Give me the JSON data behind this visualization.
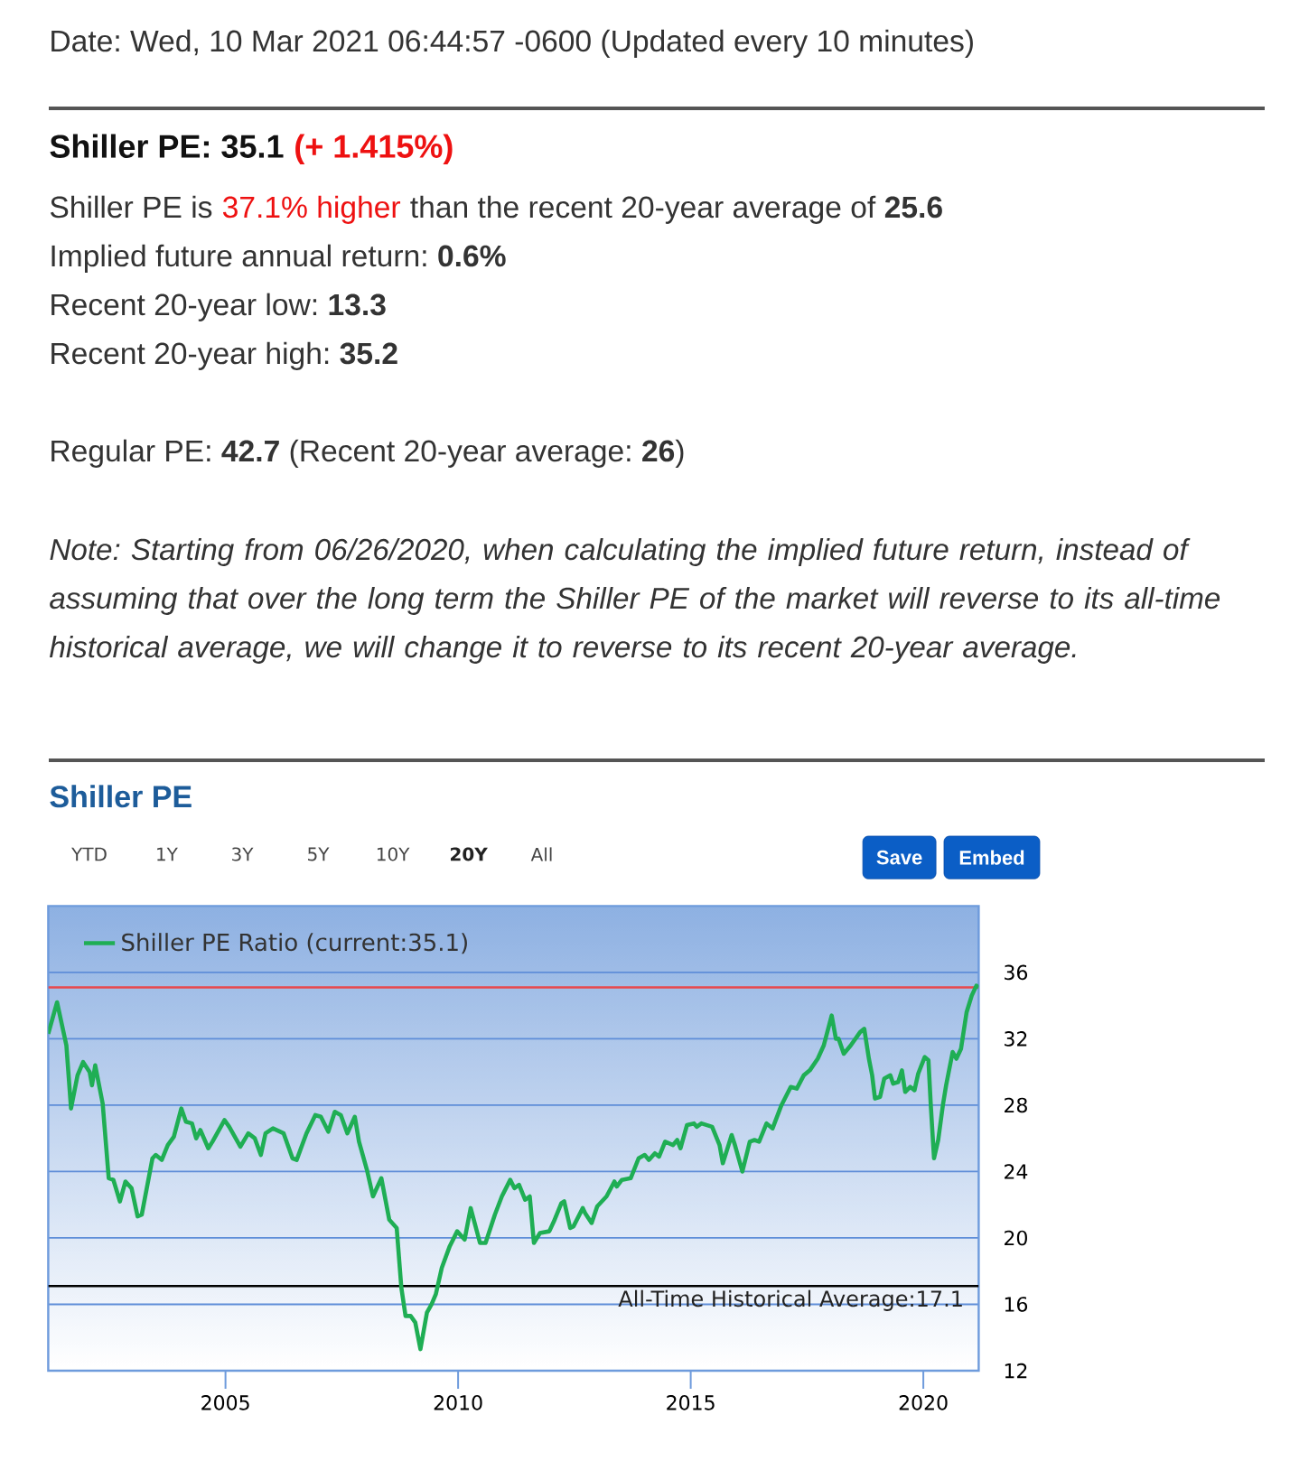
{
  "chart_data": {
    "type": "line",
    "title": "Shiller PE",
    "annotations": [
      "Date: Wed, 10 Mar 2021 06:44:57 -0600 (Updated every 10 minutes)",
      "Shiller PE: 35.1",
      "(+ 1.415%)",
      "Shiller PE is",
      "37.1% higher",
      "than the recent 20-year average of **25.6**",
      "Implied future annual return: **0.6%**",
      "Recent 20-year low: **13.3**",
      "Recent 20-year high: **35.2**",
      "Regular PE: **42.7** (Recent 20-year average: **26**)",
      "Note: Starting from 06/26/2020, when calculating the implied future return, instead of assuming that over the long term the Shiller PE of the market will reverse to its all-time historical average, we will change it to reverse to its recent 20-year average.",
      "YTD",
      "1Y",
      "3Y",
      "5Y",
      "10Y",
      "20Y",
      "All",
      "Save",
      "Embed"
    ],
    "x": [
      2001.19,
      2001.38,
      2001.58,
      2001.68,
      2001.82,
      2001.94,
      2002.08,
      2002.13,
      2002.2,
      2002.36,
      2002.49,
      2002.59,
      2002.73,
      2002.85,
      2002.98,
      2003.11,
      2003.2,
      2003.43,
      2003.5,
      2003.63,
      2003.76,
      2003.89,
      2004.05,
      2004.15,
      2004.28,
      2004.37,
      2004.46,
      2004.63,
      2004.72,
      2004.98,
      2005.08,
      2005.32,
      2005.49,
      2005.63,
      2005.76,
      2005.86,
      2006.02,
      2006.25,
      2006.44,
      2006.53,
      2006.74,
      2006.93,
      2007.05,
      2007.21,
      2007.35,
      2007.48,
      2007.62,
      2007.78,
      2007.87,
      2008.04,
      2008.17,
      2008.35,
      2008.52,
      2008.68,
      2008.78,
      2008.87,
      2008.98,
      2009.08,
      2009.19,
      2009.33,
      2009.43,
      2009.52,
      2009.65,
      2009.82,
      2009.98,
      2010.14,
      2010.27,
      2010.47,
      2010.59,
      2010.79,
      2010.94,
      2011.12,
      2011.21,
      2011.31,
      2011.44,
      2011.54,
      2011.63,
      2011.76,
      2011.96,
      2012.06,
      2012.22,
      2012.28,
      2012.41,
      2012.48,
      2012.68,
      2012.73,
      2012.87,
      2012.99,
      2013.19,
      2013.36,
      2013.41,
      2013.52,
      2013.71,
      2013.88,
      2014.01,
      2014.1,
      2014.23,
      2014.32,
      2014.45,
      2014.62,
      2014.71,
      2014.78,
      2014.92,
      2015.07,
      2015.13,
      2015.23,
      2015.46,
      2015.62,
      2015.69,
      2015.88,
      2015.95,
      2016.11,
      2016.27,
      2016.37,
      2016.47,
      2016.63,
      2016.76,
      2016.95,
      2017.15,
      2017.28,
      2017.43,
      2017.56,
      2017.73,
      2017.86,
      2018.03,
      2018.12,
      2018.18,
      2018.29,
      2018.44,
      2018.64,
      2018.73,
      2018.83,
      2018.9,
      2018.96,
      2019.07,
      2019.16,
      2019.29,
      2019.35,
      2019.46,
      2019.54,
      2019.61,
      2019.72,
      2019.81,
      2019.89,
      2020.03,
      2020.11,
      2020.16,
      2020.23,
      2020.32,
      2020.42,
      2020.49,
      2020.63,
      2020.71,
      2020.81,
      2020.93,
      2021.04,
      2021.14,
      2021.19
    ],
    "series": [
      {
        "name": "Shiller PE Ratio (current:35.1)",
        "color": "#1fae54",
        "values": [
          32.3,
          34.2,
          31.6,
          27.8,
          29.8,
          30.6,
          30.0,
          29.2,
          30.4,
          28.1,
          23.6,
          23.5,
          22.2,
          23.4,
          23.0,
          21.3,
          21.4,
          24.8,
          25.0,
          24.7,
          25.6,
          26.1,
          27.8,
          27.0,
          26.9,
          26.0,
          26.5,
          25.4,
          25.8,
          27.1,
          26.7,
          25.5,
          26.3,
          26.0,
          25.0,
          26.3,
          26.6,
          26.3,
          24.8,
          24.7,
          26.3,
          27.4,
          27.3,
          26.4,
          27.6,
          27.4,
          26.3,
          27.3,
          25.8,
          24.1,
          22.5,
          23.6,
          21.1,
          20.6,
          17.0,
          15.3,
          15.3,
          14.9,
          13.3,
          15.5,
          16.0,
          16.6,
          18.2,
          19.5,
          20.4,
          19.9,
          21.8,
          19.7,
          19.7,
          21.4,
          22.5,
          23.5,
          23.0,
          23.2,
          22.3,
          22.5,
          19.7,
          20.3,
          20.4,
          21.0,
          22.1,
          22.2,
          20.6,
          20.7,
          21.8,
          21.5,
          20.9,
          21.9,
          22.5,
          23.4,
          23.1,
          23.5,
          23.6,
          24.8,
          25.0,
          24.7,
          25.1,
          24.9,
          25.8,
          25.6,
          25.9,
          25.4,
          26.8,
          26.9,
          26.7,
          26.9,
          26.7,
          25.6,
          24.5,
          26.2,
          25.6,
          24.0,
          25.8,
          25.9,
          25.8,
          26.9,
          26.6,
          28.0,
          29.1,
          29.0,
          29.8,
          30.1,
          30.8,
          31.6,
          33.4,
          32.0,
          32.0,
          31.1,
          31.6,
          32.4,
          32.6,
          30.8,
          29.8,
          28.4,
          28.5,
          29.6,
          29.8,
          29.3,
          29.4,
          30.1,
          28.8,
          29.1,
          28.9,
          29.9,
          30.9,
          30.7,
          28.0,
          24.8,
          25.9,
          28.0,
          29.2,
          31.2,
          30.8,
          31.4,
          33.6,
          34.6,
          35.2,
          35.1
        ]
      }
    ],
    "xlim": [
      2001.19,
      2021.19
    ],
    "xticks": [
      2005,
      2010,
      2015,
      2020
    ],
    "ylim": [
      12,
      40
    ],
    "yticks": [
      12,
      16,
      20,
      24,
      28,
      32,
      36
    ],
    "grid": "y",
    "legend": "top left",
    "ref_lines": [
      {
        "axis": "y",
        "value": 35.1,
        "color": "#e8474c"
      },
      {
        "axis": "y",
        "value": 17.1,
        "label": "All-Time Historical Average:17.1",
        "color": "#000000"
      }
    ]
  }
}
